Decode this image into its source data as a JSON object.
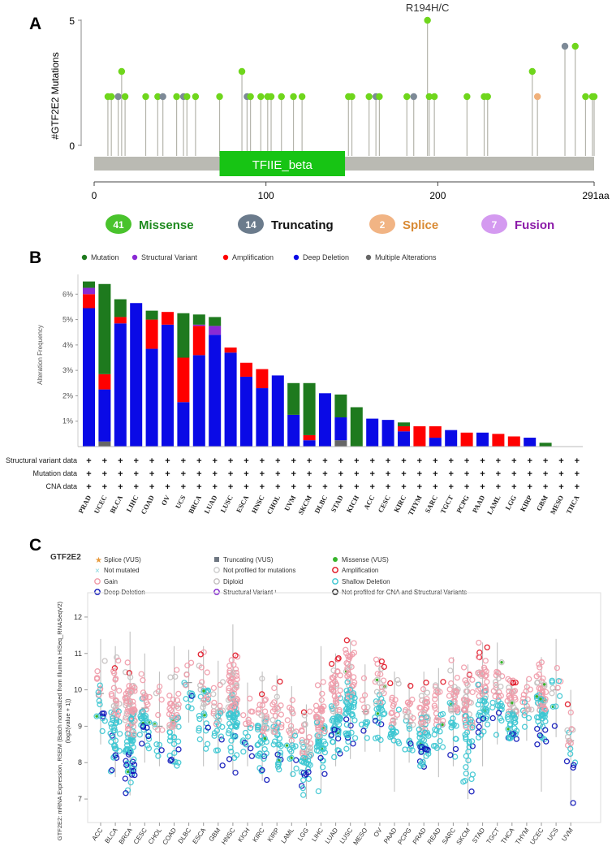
{
  "panel_letters": [
    "A",
    "B",
    "C"
  ],
  "chart_data": [
    {
      "type": "lollipop",
      "panel": "A",
      "ylabel": "#GTF2E2 Mutations",
      "y_ticks": [
        0,
        5
      ],
      "x_ticks": [
        "0",
        "100",
        "200",
        "291aa"
      ],
      "domain": {
        "name": "TFIIE_beta",
        "start": 73,
        "end": 146,
        "color": "#17c414"
      },
      "hotspot_label": "R194H/C",
      "legend": [
        {
          "count": "41",
          "label": "Missense",
          "circle": "#49c32c",
          "text_color": "#1e8a1e"
        },
        {
          "count": "14",
          "label": "Truncating",
          "circle": "#6b7b8c",
          "text_color": "#111111"
        },
        {
          "count": "2",
          "label": "Splice",
          "circle": "#f1b484",
          "text_color": "#d98a33"
        },
        {
          "count": "7",
          "label": "Fusion",
          "circle": "#d49af0",
          "text_color": "#8b1aa8"
        }
      ],
      "colors": {
        "missense": "#6fd61c",
        "truncating": "#7d8a97",
        "splice": "#f0b07a"
      },
      "mutations": [
        {
          "pos": 8,
          "count": 1,
          "type": "missense"
        },
        {
          "pos": 10,
          "count": 1,
          "type": "missense"
        },
        {
          "pos": 14,
          "count": 1,
          "type": "truncating"
        },
        {
          "pos": 16,
          "count": 2,
          "type": "missense"
        },
        {
          "pos": 18,
          "count": 1,
          "type": "missense"
        },
        {
          "pos": 30,
          "count": 1,
          "type": "missense"
        },
        {
          "pos": 37,
          "count": 1,
          "type": "missense"
        },
        {
          "pos": 40,
          "count": 1,
          "type": "truncating"
        },
        {
          "pos": 48,
          "count": 1,
          "type": "missense"
        },
        {
          "pos": 52,
          "count": 1,
          "type": "truncating"
        },
        {
          "pos": 54,
          "count": 1,
          "type": "missense"
        },
        {
          "pos": 59,
          "count": 1,
          "type": "missense"
        },
        {
          "pos": 73,
          "count": 1,
          "type": "missense"
        },
        {
          "pos": 86,
          "count": 2,
          "type": "missense"
        },
        {
          "pos": 89,
          "count": 1,
          "type": "truncating"
        },
        {
          "pos": 91,
          "count": 1,
          "type": "missense"
        },
        {
          "pos": 97,
          "count": 1,
          "type": "missense"
        },
        {
          "pos": 101,
          "count": 1,
          "type": "missense"
        },
        {
          "pos": 103,
          "count": 1,
          "type": "missense"
        },
        {
          "pos": 109,
          "count": 1,
          "type": "missense"
        },
        {
          "pos": 116,
          "count": 1,
          "type": "missense"
        },
        {
          "pos": 121,
          "count": 1,
          "type": "missense"
        },
        {
          "pos": 148,
          "count": 1,
          "type": "missense"
        },
        {
          "pos": 150,
          "count": 1,
          "type": "missense"
        },
        {
          "pos": 160,
          "count": 1,
          "type": "missense"
        },
        {
          "pos": 164,
          "count": 1,
          "type": "truncating"
        },
        {
          "pos": 166,
          "count": 1,
          "type": "missense"
        },
        {
          "pos": 182,
          "count": 1,
          "type": "missense"
        },
        {
          "pos": 186,
          "count": 1,
          "type": "truncating"
        },
        {
          "pos": 194,
          "count": 5,
          "type": "missense"
        },
        {
          "pos": 195,
          "count": 1,
          "type": "missense"
        },
        {
          "pos": 198,
          "count": 1,
          "type": "missense"
        },
        {
          "pos": 217,
          "count": 1,
          "type": "missense"
        },
        {
          "pos": 227,
          "count": 1,
          "type": "missense"
        },
        {
          "pos": 229,
          "count": 1,
          "type": "missense"
        },
        {
          "pos": 255,
          "count": 2,
          "type": "missense"
        },
        {
          "pos": 258,
          "count": 1,
          "type": "splice"
        },
        {
          "pos": 274,
          "count": 3,
          "type": "truncating"
        },
        {
          "pos": 280,
          "count": 3,
          "type": "missense"
        },
        {
          "pos": 286,
          "count": 1,
          "type": "missense"
        },
        {
          "pos": 290,
          "count": 1,
          "type": "missense"
        },
        {
          "pos": 291,
          "count": 1,
          "type": "missense"
        }
      ]
    },
    {
      "type": "bar",
      "panel": "B",
      "ylabel": "Alteration Frequency",
      "y_ticks": [
        "1%",
        "2%",
        "3%",
        "4%",
        "5%",
        "6%"
      ],
      "ylim": [
        0,
        7
      ],
      "legend": [
        {
          "label": "Mutation",
          "color": "#1e7a1e"
        },
        {
          "label": "Structural Variant",
          "color": "#8a2ad4"
        },
        {
          "label": "Amplification",
          "color": "#ff0000"
        },
        {
          "label": "Deep Deletion",
          "color": "#0a0ae6"
        },
        {
          "label": "Multiple Alterations",
          "color": "#666666"
        }
      ],
      "stack_order": [
        "Multiple Alterations",
        "Deep Deletion",
        "Amplification",
        "Structural Variant",
        "Mutation"
      ],
      "categories": [
        "PRAD",
        "UCEC",
        "BLCA",
        "LIHC",
        "COAD",
        "OV",
        "UCS",
        "BRCA",
        "LUAD",
        "LUSC",
        "ESCA",
        "HNSC",
        "CHOL",
        "UVM",
        "SKCM",
        "DLBC",
        "STAD",
        "KICH",
        "ACC",
        "CESC",
        "KIRC",
        "THYM",
        "SARC",
        "TGCT",
        "PCPG",
        "PAAD",
        "LAML",
        "LGG",
        "KIRP",
        "GBM",
        "MESO",
        "THCA"
      ],
      "series": [
        {
          "name": "Multiple Alterations",
          "values": [
            0,
            0.2,
            0,
            0,
            0,
            0,
            0,
            0,
            0,
            0,
            0,
            0,
            0,
            0,
            0,
            0,
            0.25,
            0,
            0,
            0,
            0,
            0,
            0,
            0,
            0,
            0,
            0,
            0,
            0,
            0,
            0,
            0
          ]
        },
        {
          "name": "Deep Deletion",
          "values": [
            5.45,
            2.05,
            4.85,
            5.65,
            3.85,
            4.8,
            1.75,
            3.6,
            4.4,
            3.7,
            2.75,
            2.3,
            2.8,
            1.25,
            0.25,
            2.1,
            0.9,
            0,
            1.1,
            1.05,
            0.6,
            0,
            0.35,
            0.65,
            0,
            0.55,
            0,
            0,
            0.35,
            0,
            0,
            0
          ]
        },
        {
          "name": "Amplification",
          "values": [
            0.55,
            0.6,
            0.25,
            0,
            1.15,
            0.5,
            1.75,
            1.15,
            0,
            0.2,
            0.55,
            0.75,
            0,
            0,
            0.2,
            0,
            0,
            0,
            0,
            0,
            0.2,
            0.8,
            0.45,
            0,
            0.55,
            0,
            0.5,
            0.4,
            0,
            0,
            0,
            0
          ]
        },
        {
          "name": "Structural Variant",
          "values": [
            0.25,
            0,
            0,
            0,
            0,
            0,
            0,
            0.05,
            0.35,
            0,
            0,
            0,
            0,
            0,
            0,
            0,
            0,
            0,
            0,
            0,
            0,
            0,
            0,
            0,
            0,
            0,
            0,
            0,
            0,
            0,
            0,
            0
          ]
        },
        {
          "name": "Mutation",
          "values": [
            0.25,
            3.55,
            0.7,
            0,
            0.35,
            0,
            1.75,
            0.4,
            0.35,
            0,
            0,
            0,
            0,
            1.25,
            2.05,
            0,
            0.9,
            1.55,
            0,
            0,
            0.15,
            0,
            0,
            0,
            0,
            0,
            0,
            0,
            0,
            0.15,
            0,
            0
          ]
        }
      ],
      "row_labels": [
        "Structural variant data",
        "Mutation data",
        "CNA data"
      ],
      "row_symbol": "+"
    },
    {
      "type": "scatter",
      "panel": "C",
      "gene_label": "GTF2E2",
      "ylabel": "GTF2E2: mRNA Expression, RSEM (Batch normalized from Illumina HiSeq_RNASeqV2) (log2(value + 1))",
      "ylabel_lines": [
        "GTF2E2: mRNA Expression, RSEM (Batch normalized from Illumina HiSeq_RNASeqV2)",
        "(log2(value + 1))"
      ],
      "ylim": [
        6.6,
        12.4
      ],
      "y_ticks": [
        7,
        8,
        9,
        10,
        11,
        12
      ],
      "legend": [
        {
          "label": "Splice (VUS)",
          "symbol": "star",
          "color": "#e89a3c"
        },
        {
          "label": "Truncating (VUS)",
          "symbol": "square",
          "color": "#6f7782"
        },
        {
          "label": "Missense (VUS)",
          "symbol": "dot",
          "color": "#37b42c"
        },
        {
          "label": "Not mutated",
          "symbol": "cross",
          "color": "#7fd4dc"
        },
        {
          "label": "Not profiled for mutations",
          "symbol": "ring",
          "color": "#cccccc"
        },
        {
          "label": "Amplification",
          "symbol": "ring",
          "color": "#e0101f"
        },
        {
          "label": "Gain",
          "symbol": "ring",
          "color": "#f09aa8"
        },
        {
          "label": "Diploid",
          "symbol": "ring",
          "color": "#c4c0c0"
        },
        {
          "label": "Shallow Deletion",
          "symbol": "ring",
          "color": "#3cc6d2"
        },
        {
          "label": "Deep Deletion",
          "symbol": "ring",
          "color": "#0a12b8"
        },
        {
          "label": "Structural Variant ¹",
          "symbol": "ring",
          "color": "#7d1fcc"
        },
        {
          "label": "Not profiled for CNA and Structural Variants",
          "symbol": "ring",
          "color": "#222222"
        }
      ],
      "groups": [
        {
          "name": "ACC",
          "median": 9.9,
          "spread": 0.6,
          "min": 8.5,
          "max": 11.4,
          "n": 20
        },
        {
          "name": "BLCA",
          "median": 9.4,
          "spread": 0.7,
          "min": 7.6,
          "max": 11.2,
          "n": 55
        },
        {
          "name": "BRCA",
          "median": 9.0,
          "spread": 0.8,
          "min": 7.1,
          "max": 11.6,
          "n": 110
        },
        {
          "name": "CESC",
          "median": 9.5,
          "spread": 0.55,
          "min": 8.0,
          "max": 11.0,
          "n": 40
        },
        {
          "name": "CHOL",
          "median": 9.0,
          "spread": 0.6,
          "min": 7.9,
          "max": 10.5,
          "n": 14
        },
        {
          "name": "COAD",
          "median": 9.1,
          "spread": 0.7,
          "min": 7.9,
          "max": 11.2,
          "n": 50
        },
        {
          "name": "DLBC",
          "median": 10.2,
          "spread": 0.4,
          "min": 9.1,
          "max": 11.1,
          "n": 15
        },
        {
          "name": "ESCA",
          "median": 9.7,
          "spread": 0.6,
          "min": 7.9,
          "max": 11.2,
          "n": 35
        },
        {
          "name": "GBM",
          "median": 9.2,
          "spread": 0.6,
          "min": 7.8,
          "max": 10.8,
          "n": 30
        },
        {
          "name": "HNSC",
          "median": 9.6,
          "spread": 0.7,
          "min": 7.7,
          "max": 11.8,
          "n": 90
        },
        {
          "name": "KICH",
          "median": 9.0,
          "spread": 0.5,
          "min": 7.9,
          "max": 10.2,
          "n": 18
        },
        {
          "name": "KIRC",
          "median": 8.9,
          "spread": 0.55,
          "min": 7.5,
          "max": 10.5,
          "n": 50
        },
        {
          "name": "KIRP",
          "median": 8.9,
          "spread": 0.55,
          "min": 7.8,
          "max": 10.4,
          "n": 40
        },
        {
          "name": "LAML",
          "median": 8.7,
          "spread": 0.5,
          "min": 7.6,
          "max": 10.1,
          "n": 25
        },
        {
          "name": "LGG",
          "median": 8.3,
          "spread": 0.55,
          "min": 7.0,
          "max": 9.6,
          "n": 50
        },
        {
          "name": "LIHC",
          "median": 8.9,
          "spread": 0.7,
          "min": 7.2,
          "max": 11.2,
          "n": 60
        },
        {
          "name": "LUAD",
          "median": 9.5,
          "spread": 0.65,
          "min": 7.9,
          "max": 11.0,
          "n": 70
        },
        {
          "name": "LUSC",
          "median": 9.9,
          "spread": 0.7,
          "min": 8.1,
          "max": 11.4,
          "n": 80
        },
        {
          "name": "MESO",
          "median": 9.4,
          "spread": 0.55,
          "min": 8.3,
          "max": 10.7,
          "n": 16
        },
        {
          "name": "OV",
          "median": 9.7,
          "spread": 0.55,
          "min": 8.3,
          "max": 10.9,
          "n": 40
        },
        {
          "name": "PAAD",
          "median": 9.2,
          "spread": 0.55,
          "min": 7.2,
          "max": 10.5,
          "n": 30
        },
        {
          "name": "PCPG",
          "median": 9.1,
          "spread": 0.5,
          "min": 8.0,
          "max": 10.2,
          "n": 25
        },
        {
          "name": "PRAD",
          "median": 9.0,
          "spread": 0.55,
          "min": 7.8,
          "max": 10.5,
          "n": 70
        },
        {
          "name": "READ",
          "median": 9.2,
          "spread": 0.55,
          "min": 7.6,
          "max": 10.6,
          "n": 30
        },
        {
          "name": "SARC",
          "median": 9.4,
          "spread": 0.6,
          "min": 7.9,
          "max": 10.9,
          "n": 40
        },
        {
          "name": "SKCM",
          "median": 9.1,
          "spread": 0.7,
          "min": 7.0,
          "max": 10.7,
          "n": 60
        },
        {
          "name": "STAD",
          "median": 9.9,
          "spread": 0.6,
          "min": 7.9,
          "max": 11.3,
          "n": 60
        },
        {
          "name": "TGCT",
          "median": 9.9,
          "spread": 0.55,
          "min": 8.5,
          "max": 11.3,
          "n": 30
        },
        {
          "name": "THCA",
          "median": 9.4,
          "spread": 0.45,
          "min": 8.6,
          "max": 10.3,
          "n": 60
        },
        {
          "name": "THYM",
          "median": 9.5,
          "spread": 0.45,
          "min": 8.6,
          "max": 10.3,
          "n": 20
        },
        {
          "name": "UCEC",
          "median": 9.6,
          "spread": 0.6,
          "min": 7.2,
          "max": 10.9,
          "n": 70
        },
        {
          "name": "UCS",
          "median": 10.0,
          "spread": 0.55,
          "min": 8.7,
          "max": 11.4,
          "n": 12
        },
        {
          "name": "UVM",
          "median": 8.6,
          "spread": 0.6,
          "min": 6.8,
          "max": 10.0,
          "n": 18
        }
      ]
    }
  ]
}
